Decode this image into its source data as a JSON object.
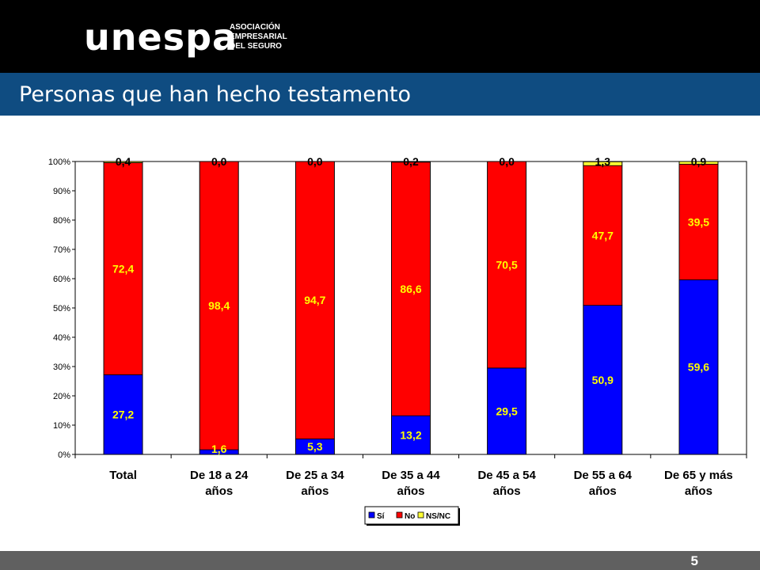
{
  "header": {
    "logo_text": "unespa",
    "logo_sub": [
      "ASOCIACIÓN",
      "EMPRESARIAL",
      "DEL SEGURO"
    ]
  },
  "title": "Personas que han hecho testamento",
  "page_number": "5",
  "colors": {
    "si": "#0000ff",
    "no": "#ff0000",
    "nsnc": "#ffff33",
    "header_bg": "#000000",
    "title_bg": "#0f4c81",
    "footer_bg": "#606060"
  },
  "chart_data": {
    "type": "bar",
    "stacked": true,
    "categories": [
      [
        "Total"
      ],
      [
        "De 18 a 24",
        "años"
      ],
      [
        "De 25 a 34",
        "años"
      ],
      [
        "De 35 a 44",
        "años"
      ],
      [
        "De 45 a 54",
        "años"
      ],
      [
        "De 55 a 64",
        "años"
      ],
      [
        "De 65 y más",
        "años"
      ]
    ],
    "series": [
      {
        "name": "Sí",
        "values": [
          27.2,
          1.6,
          5.3,
          13.2,
          29.5,
          50.9,
          59.6
        ],
        "labels": [
          "27,2",
          "1,6",
          "5,3",
          "13,2",
          "29,5",
          "50,9",
          "59,6"
        ]
      },
      {
        "name": "No",
        "values": [
          72.4,
          98.4,
          94.7,
          86.6,
          70.5,
          47.7,
          39.5
        ],
        "labels": [
          "72,4",
          "98,4",
          "94,7",
          "86,6",
          "70,5",
          "47,7",
          "39,5"
        ]
      },
      {
        "name": "NS/NC",
        "values": [
          0.4,
          0.0,
          0.0,
          0.2,
          0.0,
          1.3,
          0.9
        ],
        "labels": [
          "0,4",
          "0,0",
          "0,0",
          "0,2",
          "0,0",
          "1,3",
          "0,9"
        ]
      }
    ],
    "yticks": [
      "0%",
      "10%",
      "20%",
      "30%",
      "40%",
      "50%",
      "60%",
      "70%",
      "80%",
      "90%",
      "100%"
    ],
    "ylim": [
      0,
      100
    ],
    "grid": false,
    "legend_position": "bottom"
  }
}
